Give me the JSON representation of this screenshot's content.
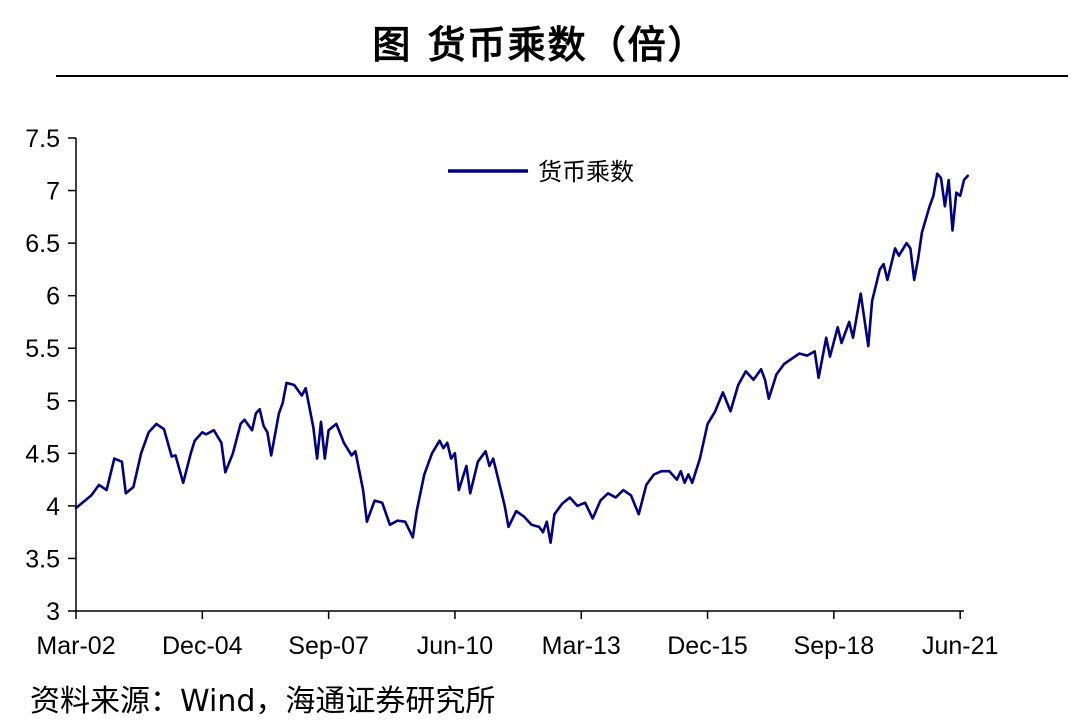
{
  "title": "图 货币乘数（倍）",
  "source": "资料来源：Wind，海通证券研究所",
  "chart_data": {
    "type": "line",
    "title": "图 货币乘数（倍）",
    "xlabel": "",
    "ylabel": "",
    "ylim": [
      3,
      7.5
    ],
    "yticks": [
      "3",
      "3.5",
      "4",
      "4.5",
      "5",
      "5.5",
      "6",
      "6.5",
      "7",
      "7.5"
    ],
    "xticks": [
      "Mar-02",
      "Dec-04",
      "Sep-07",
      "Jun-10",
      "Mar-13",
      "Dec-15",
      "Sep-18",
      "Jun-21"
    ],
    "x_range": [
      "2002-03",
      "2021-07"
    ],
    "grid": false,
    "legend_position": "top-center",
    "series": [
      {
        "name": "货币乘数",
        "color": "#000080",
        "points": [
          [
            "2002-03",
            3.98
          ],
          [
            "2002-07",
            4.1
          ],
          [
            "2002-09",
            4.2
          ],
          [
            "2002-11",
            4.15
          ],
          [
            "2003-01",
            4.45
          ],
          [
            "2003-03",
            4.42
          ],
          [
            "2003-04",
            4.12
          ],
          [
            "2003-06",
            4.18
          ],
          [
            "2003-08",
            4.5
          ],
          [
            "2003-10",
            4.7
          ],
          [
            "2003-12",
            4.78
          ],
          [
            "2004-02",
            4.73
          ],
          [
            "2004-04",
            4.47
          ],
          [
            "2004-05",
            4.48
          ],
          [
            "2004-07",
            4.22
          ],
          [
            "2004-09",
            4.5
          ],
          [
            "2004-10",
            4.62
          ],
          [
            "2004-12",
            4.7
          ],
          [
            "2005-01",
            4.68
          ],
          [
            "2005-03",
            4.72
          ],
          [
            "2005-05",
            4.6
          ],
          [
            "2005-06",
            4.32
          ],
          [
            "2005-08",
            4.5
          ],
          [
            "2005-10",
            4.78
          ],
          [
            "2005-11",
            4.82
          ],
          [
            "2006-01",
            4.72
          ],
          [
            "2006-02",
            4.88
          ],
          [
            "2006-03",
            4.92
          ],
          [
            "2006-04",
            4.76
          ],
          [
            "2006-05",
            4.7
          ],
          [
            "2006-06",
            4.48
          ],
          [
            "2006-08",
            4.88
          ],
          [
            "2006-09",
            4.98
          ],
          [
            "2006-10",
            5.17
          ],
          [
            "2006-12",
            5.15
          ],
          [
            "2007-02",
            5.05
          ],
          [
            "2007-03",
            5.12
          ],
          [
            "2007-05",
            4.75
          ],
          [
            "2007-06",
            4.45
          ],
          [
            "2007-07",
            4.8
          ],
          [
            "2007-08",
            4.45
          ],
          [
            "2007-09",
            4.72
          ],
          [
            "2007-11",
            4.78
          ],
          [
            "2008-01",
            4.6
          ],
          [
            "2008-03",
            4.48
          ],
          [
            "2008-04",
            4.52
          ],
          [
            "2008-06",
            4.15
          ],
          [
            "2008-07",
            3.85
          ],
          [
            "2008-09",
            4.05
          ],
          [
            "2008-11",
            4.03
          ],
          [
            "2009-01",
            3.82
          ],
          [
            "2009-03",
            3.86
          ],
          [
            "2009-05",
            3.85
          ],
          [
            "2009-07",
            3.7
          ],
          [
            "2009-08",
            3.95
          ],
          [
            "2009-10",
            4.3
          ],
          [
            "2009-12",
            4.5
          ],
          [
            "2010-02",
            4.62
          ],
          [
            "2010-03",
            4.55
          ],
          [
            "2010-04",
            4.6
          ],
          [
            "2010-05",
            4.45
          ],
          [
            "2010-06",
            4.5
          ],
          [
            "2010-07",
            4.15
          ],
          [
            "2010-09",
            4.38
          ],
          [
            "2010-10",
            4.12
          ],
          [
            "2010-12",
            4.42
          ],
          [
            "2011-02",
            4.52
          ],
          [
            "2011-03",
            4.38
          ],
          [
            "2011-04",
            4.45
          ],
          [
            "2011-06",
            4.15
          ],
          [
            "2011-07",
            4.0
          ],
          [
            "2011-08",
            3.8
          ],
          [
            "2011-10",
            3.95
          ],
          [
            "2011-12",
            3.9
          ],
          [
            "2012-02",
            3.82
          ],
          [
            "2012-04",
            3.8
          ],
          [
            "2012-05",
            3.75
          ],
          [
            "2012-06",
            3.85
          ],
          [
            "2012-07",
            3.65
          ],
          [
            "2012-08",
            3.92
          ],
          [
            "2012-10",
            4.02
          ],
          [
            "2012-12",
            4.08
          ],
          [
            "2013-02",
            4.0
          ],
          [
            "2013-04",
            4.03
          ],
          [
            "2013-06",
            3.88
          ],
          [
            "2013-08",
            4.05
          ],
          [
            "2013-10",
            4.12
          ],
          [
            "2013-12",
            4.08
          ],
          [
            "2014-02",
            4.15
          ],
          [
            "2014-04",
            4.1
          ],
          [
            "2014-06",
            3.92
          ],
          [
            "2014-08",
            4.2
          ],
          [
            "2014-10",
            4.3
          ],
          [
            "2014-12",
            4.33
          ],
          [
            "2015-02",
            4.33
          ],
          [
            "2015-04",
            4.25
          ],
          [
            "2015-05",
            4.33
          ],
          [
            "2015-06",
            4.22
          ],
          [
            "2015-07",
            4.3
          ],
          [
            "2015-08",
            4.22
          ],
          [
            "2015-10",
            4.45
          ],
          [
            "2015-12",
            4.78
          ],
          [
            "2016-02",
            4.9
          ],
          [
            "2016-04",
            5.08
          ],
          [
            "2016-06",
            4.9
          ],
          [
            "2016-08",
            5.15
          ],
          [
            "2016-10",
            5.28
          ],
          [
            "2016-12",
            5.2
          ],
          [
            "2017-02",
            5.3
          ],
          [
            "2017-03",
            5.2
          ],
          [
            "2017-04",
            5.02
          ],
          [
            "2017-06",
            5.25
          ],
          [
            "2017-08",
            5.35
          ],
          [
            "2017-10",
            5.4
          ],
          [
            "2017-12",
            5.45
          ],
          [
            "2018-02",
            5.43
          ],
          [
            "2018-04",
            5.47
          ],
          [
            "2018-05",
            5.22
          ],
          [
            "2018-07",
            5.6
          ],
          [
            "2018-08",
            5.42
          ],
          [
            "2018-10",
            5.7
          ],
          [
            "2018-11",
            5.55
          ],
          [
            "2019-01",
            5.75
          ],
          [
            "2019-02",
            5.6
          ],
          [
            "2019-04",
            6.02
          ],
          [
            "2019-06",
            5.52
          ],
          [
            "2019-07",
            5.95
          ],
          [
            "2019-09",
            6.25
          ],
          [
            "2019-10",
            6.3
          ],
          [
            "2019-11",
            6.15
          ],
          [
            "2020-01",
            6.45
          ],
          [
            "2020-02",
            6.38
          ],
          [
            "2020-04",
            6.5
          ],
          [
            "2020-05",
            6.45
          ],
          [
            "2020-06",
            6.15
          ],
          [
            "2020-07",
            6.35
          ],
          [
            "2020-08",
            6.6
          ],
          [
            "2020-10",
            6.85
          ],
          [
            "2020-11",
            6.95
          ],
          [
            "2020-12",
            7.16
          ],
          [
            "2021-01",
            7.12
          ],
          [
            "2021-02",
            6.85
          ],
          [
            "2021-03",
            7.1
          ],
          [
            "2021-04",
            6.62
          ],
          [
            "2021-05",
            6.98
          ],
          [
            "2021-06",
            6.95
          ],
          [
            "2021-07",
            7.1
          ],
          [
            "2021-08",
            7.14
          ]
        ]
      }
    ]
  }
}
